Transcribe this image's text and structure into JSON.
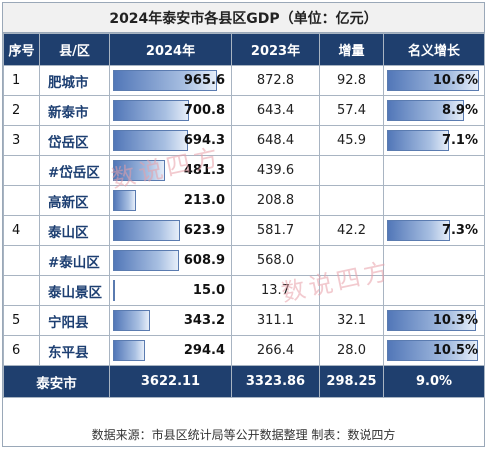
{
  "title": "2024年泰安市各县区GDP（单位：亿元）",
  "headers": [
    "序号",
    "县/区",
    "2024年",
    "2023年",
    "增量",
    "名义增长"
  ],
  "rows": [
    {
      "seq": "1",
      "name": "肥城市",
      "y2024": "965.6",
      "y2023": "872.8",
      "inc": "92.8",
      "growth": "10.6%",
      "v2024": 965.6,
      "vgrowth": 10.6
    },
    {
      "seq": "2",
      "name": "新泰市",
      "y2024": "700.8",
      "y2023": "643.4",
      "inc": "57.4",
      "growth": "8.9%",
      "v2024": 700.8,
      "vgrowth": 8.9
    },
    {
      "seq": "3",
      "name": "岱岳区",
      "y2024": "694.3",
      "y2023": "648.4",
      "inc": "45.9",
      "growth": "7.1%",
      "v2024": 694.3,
      "vgrowth": 7.1
    },
    {
      "seq": "",
      "name": "#岱岳区",
      "y2024": "481.3",
      "y2023": "439.6",
      "inc": "",
      "growth": "",
      "v2024": 481.3,
      "vgrowth": null
    },
    {
      "seq": "",
      "name": "高新区",
      "y2024": "213.0",
      "y2023": "208.8",
      "inc": "",
      "growth": "",
      "v2024": 213.0,
      "vgrowth": null
    },
    {
      "seq": "4",
      "name": "泰山区",
      "y2024": "623.9",
      "y2023": "581.7",
      "inc": "42.2",
      "growth": "7.3%",
      "v2024": 623.9,
      "vgrowth": 7.3
    },
    {
      "seq": "",
      "name": "#泰山区",
      "y2024": "608.9",
      "y2023": "568.0",
      "inc": "",
      "growth": "",
      "v2024": 608.9,
      "vgrowth": null
    },
    {
      "seq": "",
      "name": "泰山景区",
      "y2024": "15.0",
      "y2023": "13.7",
      "inc": "",
      "growth": "",
      "v2024": 15.0,
      "vgrowth": null
    },
    {
      "seq": "5",
      "name": "宁阳县",
      "y2024": "343.2",
      "y2023": "311.1",
      "inc": "32.1",
      "growth": "10.3%",
      "v2024": 343.2,
      "vgrowth": 10.3
    },
    {
      "seq": "6",
      "name": "东平县",
      "y2024": "294.4",
      "y2023": "266.4",
      "inc": "28.0",
      "growth": "10.5%",
      "v2024": 294.4,
      "vgrowth": 10.5
    }
  ],
  "total": {
    "name": "泰安市",
    "y2024": "3622.11",
    "y2023": "3323.86",
    "inc": "298.25",
    "growth": "9.0%"
  },
  "footer": "数据来源：市县区统计局等公开数据整理    制表：数说四方",
  "watermark": "数说四方",
  "colors": {
    "header": "#1f3f6e",
    "bar": "#5277b8",
    "name": "#1d3f72"
  }
}
